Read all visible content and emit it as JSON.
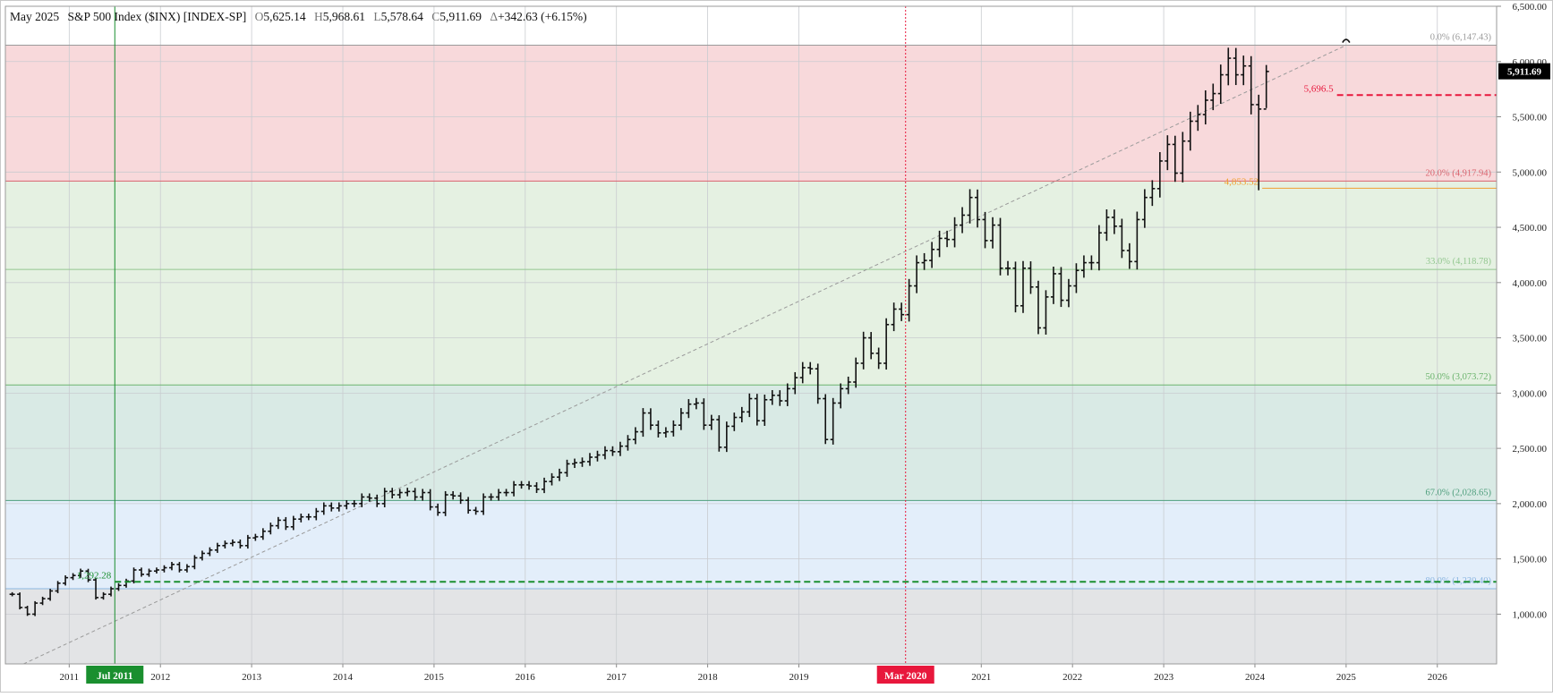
{
  "header": {
    "month": "May 2025",
    "symbol": "S&P 500 Index ($INX) [INDEX-SP]",
    "open_label": "O",
    "open": "5,625.14",
    "high_label": "H",
    "high": "5,968.61",
    "low_label": "L",
    "low": "5,578.64",
    "close_label": "C",
    "close": "5,911.69",
    "change_label": "Δ",
    "change": "+342.63 (+6.15%)"
  },
  "chart_data": {
    "type": "ohlc-bar",
    "period": "monthly",
    "y_range": [
      550,
      6500
    ],
    "x_range": [
      2010.3,
      2026.65
    ],
    "grid": true,
    "y_ticks": [
      1000,
      1500,
      2000,
      2500,
      3000,
      3500,
      4000,
      4500,
      5000,
      5500,
      6000,
      6500
    ],
    "y_tick_labels": [
      "1,000.00",
      "1,500.00",
      "2,000.00",
      "2,500.00",
      "3,000.00",
      "3,500.00",
      "4,000.00",
      "4,500.00",
      "5,000.00",
      "5,500.00",
      "6,000.00",
      "6,500.00"
    ],
    "x_ticks": [
      {
        "t": 2011.0,
        "label": "2011"
      },
      {
        "t": 2012.0,
        "label": "2012"
      },
      {
        "t": 2013.0,
        "label": "2013"
      },
      {
        "t": 2014.0,
        "label": "2014"
      },
      {
        "t": 2015.0,
        "label": "2015"
      },
      {
        "t": 2016.0,
        "label": "2016"
      },
      {
        "t": 2017.0,
        "label": "2017"
      },
      {
        "t": 2018.0,
        "label": "2018"
      },
      {
        "t": 2019.0,
        "label": "2019"
      },
      {
        "t": 2021.0,
        "label": "2021"
      },
      {
        "t": 2022.0,
        "label": "2022"
      },
      {
        "t": 2023.0,
        "label": "2023"
      },
      {
        "t": 2024.0,
        "label": "2024"
      },
      {
        "t": 2025.0,
        "label": "2025"
      },
      {
        "t": 2026.0,
        "label": "2026"
      }
    ],
    "x_markers": [
      {
        "t": 2011.5,
        "label": "Jul 2011",
        "color": "#1a8f2f",
        "style": "solid"
      },
      {
        "t": 2020.17,
        "label": "Mar 2020",
        "color": "#e8173c",
        "style": "dotted"
      }
    ],
    "current_price": {
      "value": 5911.69,
      "label": "5,911.69"
    },
    "bands": [
      {
        "from": 4917.94,
        "to": 6147.43,
        "color": "#f8d9db"
      },
      {
        "from": 3073.72,
        "to": 4917.94,
        "color": "#e5f1e2"
      },
      {
        "from": 2028.65,
        "to": 3073.72,
        "color": "#d9eae5"
      },
      {
        "from": 1230.4,
        "to": 2028.65,
        "color": "#e3eefa"
      },
      {
        "from": 550,
        "to": 1230.4,
        "color": "#e3e4e6"
      }
    ],
    "retracements": [
      {
        "value": 6147.43,
        "label": "0.0% (6,147.43)",
        "color": "#9a9a9a"
      },
      {
        "value": 4917.94,
        "label": "20.0% (4,917.94)",
        "color": "#d9646f"
      },
      {
        "value": 4118.78,
        "label": "33.0% (4,118.78)",
        "color": "#93c790"
      },
      {
        "value": 3073.72,
        "label": "50.0% (3,073.72)",
        "color": "#6cb46e"
      },
      {
        "value": 2028.65,
        "label": "67.0% (2,028.65)",
        "color": "#4e9e7c"
      },
      {
        "value": 1230.4,
        "label": "80.0% (1,230.40)",
        "color": "#8bb6e0"
      }
    ],
    "price_lines": [
      {
        "value": 1292.28,
        "label": "1,292.28",
        "color": "#1a8f2f",
        "from": 2011.5,
        "dash": true
      },
      {
        "value": 5696.5,
        "label": "5,696.5",
        "color": "#e8173c",
        "from": 2024.9,
        "dash": true
      },
      {
        "value": 4853.52,
        "label": "4,853.52",
        "color": "#f0a030",
        "from": 2024.08,
        "dash": false
      }
    ],
    "trendline": {
      "from": [
        2010.5,
        550
      ],
      "to": [
        2025.0,
        6147.43
      ]
    },
    "points": [
      1180,
      1060,
      1000,
      1100,
      1140,
      1210,
      1280,
      1330,
      1350,
      1390,
      1310,
      1150,
      1180,
      1230,
      1260,
      1300,
      1400,
      1360,
      1390,
      1400,
      1420,
      1450,
      1400,
      1430,
      1510,
      1550,
      1580,
      1620,
      1640,
      1650,
      1620,
      1690,
      1700,
      1750,
      1800,
      1850,
      1790,
      1860,
      1880,
      1880,
      1930,
      1980,
      1960,
      1980,
      2000,
      2000,
      2060,
      2050,
      2000,
      2110,
      2080,
      2100,
      2110,
      2060,
      2100,
      1970,
      1920,
      2080,
      2070,
      2030,
      1940,
      1930,
      2060,
      2060,
      2100,
      2100,
      2170,
      2170,
      2160,
      2130,
      2200,
      2240,
      2280,
      2360,
      2370,
      2380,
      2420,
      2440,
      2480,
      2470,
      2520,
      2580,
      2650,
      2820,
      2710,
      2640,
      2650,
      2710,
      2820,
      2900,
      2910,
      2710,
      2760,
      2510,
      2700,
      2780,
      2830,
      2950,
      2750,
      2940,
      2980,
      2930,
      3040,
      3140,
      3230,
      3220,
      2950,
      2580,
      2910,
      3040,
      3100,
      3270,
      3500,
      3360,
      3270,
      3620,
      3760,
      3710,
      3970,
      4180,
      4200,
      4300,
      4400,
      4390,
      4520,
      4610,
      4770,
      4570,
      4380,
      4520,
      4130,
      4130,
      3790,
      4130,
      3960,
      3590,
      3870,
      4080,
      3840,
      3970,
      4110,
      4180,
      4180,
      4450,
      4590,
      4510,
      4290,
      4190,
      4570,
      4770,
      4850,
      5100,
      5250,
      4990,
      5280,
      5460,
      5520,
      5650,
      5710,
      5880,
      6030,
      5880,
      5960,
      5610,
      5570,
      5910
    ]
  }
}
